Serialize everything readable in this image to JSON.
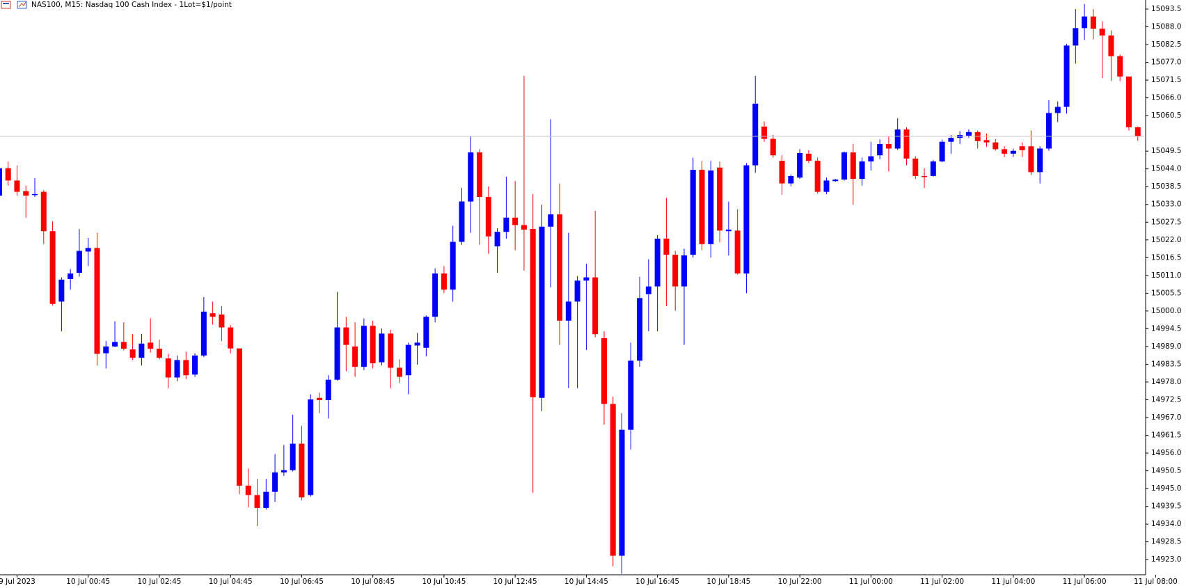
{
  "chart_data": {
    "type": "candlestick",
    "title": "NAS100, M15:  Nasdaq 100 Cash Index - 1Lot=$1/point",
    "up_color": "#0000ff",
    "down_color": "#ff0000",
    "categories": [
      null,
      null,
      "9 Jul 2023",
      null,
      null,
      null,
      null,
      null,
      null,
      null,
      "10 Jul 00:45",
      null,
      null,
      null,
      null,
      null,
      null,
      null,
      "10 Jul 02:45",
      null,
      null,
      null,
      null,
      null,
      null,
      null,
      "10 Jul 04:45",
      null,
      null,
      null,
      null,
      null,
      null,
      null,
      "10 Jul 06:45",
      null,
      null,
      null,
      null,
      null,
      null,
      null,
      "10 Jul 08:45",
      null,
      null,
      null,
      null,
      null,
      null,
      null,
      "10 Jul 10:45",
      null,
      null,
      null,
      null,
      null,
      null,
      null,
      "10 Jul 12:45",
      null,
      null,
      null,
      null,
      null,
      null,
      null,
      "10 Jul 14:45",
      null,
      null,
      null,
      null,
      null,
      null,
      null,
      "10 Jul 16:45",
      null,
      null,
      null,
      null,
      null,
      null,
      null,
      "10 Jul 18:45",
      null,
      null,
      null,
      null,
      null,
      null,
      null,
      "10 Jul 22:00",
      null,
      null,
      null,
      null,
      null,
      null,
      null,
      "11 Jul 00:00",
      null,
      null,
      null,
      null,
      null,
      null,
      null,
      "11 Jul 02:00",
      null,
      null,
      null,
      null,
      null,
      null,
      null,
      "11 Jul 04:00",
      null,
      null,
      null,
      null,
      null,
      null,
      null,
      "11 Jul 06:00",
      null,
      null,
      null,
      null,
      null,
      null,
      null,
      "11 Jul 08:00"
    ],
    "open": [
      15035.7,
      15044.2,
      15040.4,
      15037.1,
      15036.0,
      15036.9,
      15024.7,
      15002.9,
      15009.9,
      15011.8,
      15018.4,
      15019.5,
      14986.9,
      14989.0,
      14990.4,
      14988.1,
      14985.5,
      14990.2,
      14988.3,
      14985.3,
      14979.4,
      14984.8,
      14980.3,
      14986.2,
      14999.3,
      14998.9,
      14994.9,
      14988.4,
      14945.9,
      14943.0,
      14939.0,
      14944.0,
      14950.0,
      14950.7,
      14958.9,
      14943.0,
      14973.1,
      14972.4,
      14978.7,
      14994.9,
      14989.0,
      14982.7,
      14995.4,
      14984.1,
      14993.0,
      14982.4,
      14980.1,
      14989.3,
      14988.6,
      14998.2,
      15011.6,
      15006.6,
      15021.4,
      15033.9,
      15049.1,
      15035.3,
      15020.0,
      15024.5,
      15028.9,
      15026.6,
      15025.4,
      14973.1,
      15026.1,
      15029.9,
      14997.0,
      15002.9,
      15009.4,
      15010.4,
      14991.6,
      14971.2,
      14924.2,
      14963.2,
      14984.6,
      15005.2,
      15007.6,
      15022.4,
      15017.4,
      15007.6,
      15017.4,
      15043.7,
      15020.7,
      15044.4,
      15024.7,
      15024.9,
      15011.6,
      15045.1,
      15057.1,
      15053.3,
      15046.5,
      15039.5,
      15041.3,
      15048.7,
      15046.5,
      15036.9,
      15040.2,
      15040.7,
      15049.1,
      15040.9,
      15046.3,
      15048.2,
      15051.7,
      15050.3,
      15056.2,
      15047.2,
      15041.8,
      15041.8,
      15046.3,
      15052.4,
      15053.6,
      15054.3,
      15055.4,
      15052.9,
      15052.2,
      15050.1,
      15048.7,
      15051.0,
      15051.0,
      15043.0,
      15050.3,
      15061.3,
      15063.2,
      15082.2,
      15087.6,
      15091.2,
      15087.4,
      15085.3,
      15078.9,
      15072.6,
      15056.9,
      null,
      null
    ],
    "high": [
      15046.5,
      15046.3,
      15045.1,
      15038.8,
      15041.1,
      15037.4,
      15027.8,
      15010.4,
      15013.0,
      15025.4,
      15022.6,
      15024.2,
      14990.7,
      14996.8,
      14996.5,
      14992.8,
      14992.9,
      14997.7,
      14991.1,
      14986.7,
      14986.2,
      14987.4,
      14986.9,
      15004.3,
      15002.9,
      15001.5,
      14995.6,
      14988.4,
      14951.2,
      14948.0,
      14948.0,
      14955.7,
      14958.5,
      14967.9,
      14964.4,
      14974.2,
      14974.7,
      14980.1,
      15005.9,
      14998.2,
      14996.5,
      14997.7,
      14997.0,
      14994.6,
      14994.2,
      14985.0,
      14990.2,
      14993.2,
      14998.6,
      15013.2,
      15013.9,
      15026.4,
      15038.1,
      15054.0,
      15050.1,
      15038.6,
      15025.6,
      15041.6,
      15040.2,
      15072.8,
      15036.2,
      15032.9,
      15059.4,
      15039.5,
      15024.2,
      15010.8,
      15014.6,
      15031.0,
      14993.7,
      14973.5,
      14968.3,
      14990.2,
      15010.6,
      15016.0,
      15023.5,
      15035.0,
      15018.6,
      15019.3,
      15047.5,
      15046.5,
      15046.5,
      15046.3,
      15033.9,
      15031.5,
      15045.8,
      15072.8,
      15058.7,
      15054.5,
      15048.2,
      15042.3,
      15050.1,
      15049.8,
      15047.5,
      15041.3,
      15040.9,
      15049.4,
      15051.7,
      15047.5,
      15052.4,
      15053.1,
      15054.0,
      15059.7,
      15056.9,
      15047.9,
      15044.2,
      15046.8,
      15053.1,
      15054.5,
      15055.7,
      15056.2,
      15055.9,
      15055.0,
      15053.3,
      15051.0,
      15050.3,
      15052.2,
      15055.9,
      15051.0,
      15065.3,
      15064.9,
      15082.7,
      15093.5,
      15095.1,
      15093.5,
      15089.7,
      15086.9,
      15079.4,
      15072.6,
      15057.1,
      null,
      null
    ],
    "low": [
      15035.7,
      15038.8,
      15035.7,
      15028.9,
      15035.3,
      15020.7,
      15001.7,
      14993.7,
      15006.6,
      15010.6,
      15013.9,
      14983.1,
      14982.2,
      14988.8,
      14987.8,
      14984.8,
      14983.1,
      14987.1,
      14985.0,
      14976.1,
      14978.2,
      14978.9,
      14979.6,
      14985.7,
      14995.8,
      14990.7,
      14986.9,
      14943.3,
      14939.2,
      14933.4,
      14938.5,
      14940.9,
      14948.9,
      14950.3,
      14941.4,
      14942.5,
      14968.4,
      14966.7,
      14978.4,
      14981.3,
      14979.6,
      14981.7,
      14982.2,
      14983.1,
      14976.1,
      14977.7,
      14974.2,
      14983.4,
      14985.9,
      14996.5,
      15005.5,
      15002.9,
      15020.5,
      15024.2,
      15020.5,
      15017.7,
      15011.8,
      15022.4,
      15018.8,
      15012.5,
      14943.7,
      14969.0,
      15007.3,
      14989.5,
      14976.1,
      14976.1,
      14987.9,
      14991.8,
      14964.8,
      14920.9,
      14918.6,
      14957.1,
      14982.7,
      14993.7,
      14993.7,
      15001.5,
      15000.1,
      14989.5,
      15016.5,
      15018.8,
      15016.5,
      15021.2,
      15017.2,
      15011.3,
      15005.5,
      15042.8,
      15052.4,
      15047.5,
      15036.0,
      15038.6,
      15040.9,
      15045.8,
      15036.4,
      15036.2,
      15040.0,
      15040.4,
      15032.9,
      15038.8,
      15043.5,
      15047.0,
      15043.2,
      15049.8,
      15045.1,
      15040.9,
      15038.1,
      15041.6,
      15046.1,
      15048.7,
      15051.7,
      15053.6,
      15050.3,
      15050.8,
      15049.6,
      15047.7,
      15047.7,
      15047.7,
      15042.1,
      15039.5,
      15049.6,
      15058.5,
      15061.1,
      15076.6,
      15083.9,
      15084.1,
      15072.1,
      15071.2,
      15071.2,
      15055.9,
      15052.7,
      null,
      null
    ],
    "close": [
      15044.2,
      15040.4,
      15036.9,
      15035.7,
      15036.2,
      15024.7,
      15002.2,
      15009.7,
      15011.6,
      15018.6,
      15019.5,
      14986.7,
      14989.0,
      14990.4,
      14988.3,
      14985.5,
      14989.9,
      14988.3,
      14985.5,
      14979.4,
      14984.8,
      14980.1,
      14986.2,
      14999.8,
      14998.2,
      14994.9,
      14988.4,
      14945.9,
      14943.0,
      14939.0,
      14944.0,
      14950.0,
      14950.7,
      14958.9,
      14942.3,
      14972.6,
      14972.4,
      14978.7,
      14994.9,
      14989.5,
      14982.7,
      14995.4,
      14983.8,
      14993.0,
      14982.4,
      14979.6,
      14989.5,
      14990.2,
      14998.2,
      15011.6,
      15006.6,
      15021.4,
      15033.9,
      15049.1,
      15035.3,
      15023.1,
      15024.5,
      15028.9,
      15026.6,
      15025.2,
      14973.3,
      15026.1,
      15029.9,
      14997.0,
      15002.9,
      15009.4,
      15010.4,
      14992.8,
      14971.2,
      14924.2,
      14963.2,
      14984.6,
      15004.0,
      15007.6,
      15022.4,
      15017.4,
      15007.6,
      15017.2,
      15043.7,
      15020.7,
      15043.5,
      15024.9,
      15025.2,
      15011.6,
      15045.1,
      15064.2,
      15053.3,
      15048.2,
      15039.5,
      15041.8,
      15048.9,
      15046.5,
      15036.9,
      15040.4,
      15040.7,
      15049.1,
      15040.9,
      15046.3,
      15047.9,
      15051.7,
      15050.3,
      15056.2,
      15047.2,
      15041.8,
      15041.6,
      15046.3,
      15052.4,
      15053.6,
      15054.5,
      15055.4,
      15052.6,
      15052.2,
      15050.1,
      15048.7,
      15049.6,
      15049.8,
      15043.0,
      15050.3,
      15061.3,
      15063.2,
      15082.2,
      15087.6,
      15091.2,
      15087.4,
      15085.3,
      15078.9,
      15072.6,
      15056.9,
      15054.1,
      null,
      null
    ],
    "ylim": [
      14918.3,
      15096.3
    ],
    "yticks": [
      15093.5,
      {
        "value": 15088,
        "label": "15088.0"
      },
      15082.5,
      {
        "value": 15077,
        "label": "15077.0"
      },
      15071.5,
      {
        "value": 15066,
        "label": "15066.0"
      },
      15060.5,
      15049.5,
      {
        "value": 15044,
        "label": "15044.0"
      },
      15038.5,
      {
        "value": 15033,
        "label": "15033.0"
      },
      15027.5,
      {
        "value": 15022,
        "label": "15022.0"
      },
      15016.5,
      {
        "value": 15011,
        "label": "15011.0"
      },
      15005.5,
      {
        "value": 15000,
        "label": "15000.0"
      },
      14994.5,
      {
        "value": 14989,
        "label": "14989.0"
      },
      14983.5,
      {
        "value": 14978,
        "label": "14978.0"
      },
      14972.5,
      {
        "value": 14967,
        "label": "14967.0"
      },
      14961.5,
      {
        "value": 14956,
        "label": "14956.0"
      },
      14950.5,
      {
        "value": 14945,
        "label": "14945.0"
      },
      14939.5,
      {
        "value": 14934,
        "label": "14934.0"
      },
      14928.5,
      {
        "value": 14923,
        "label": "14923.0"
      }
    ],
    "grid": false
  }
}
